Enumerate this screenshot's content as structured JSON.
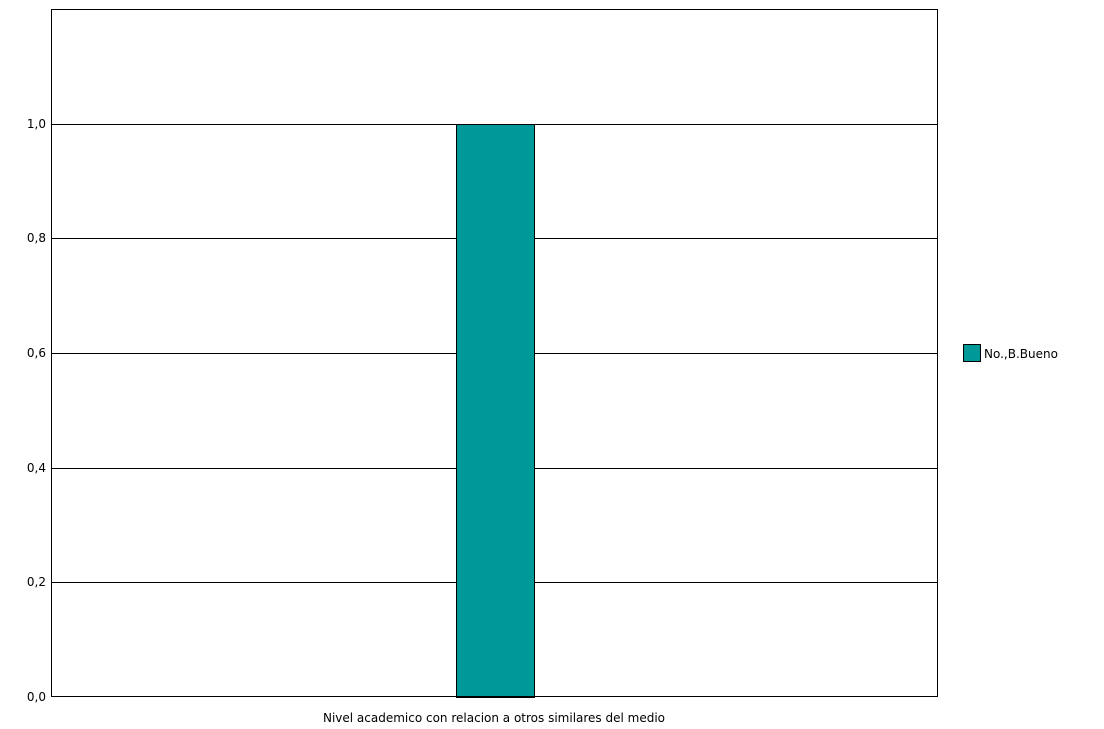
{
  "chart_data": {
    "type": "bar",
    "categories": [
      ""
    ],
    "series": [
      {
        "name": "No.,B.Bueno",
        "values": [
          1.0
        ],
        "color": "#009999"
      }
    ],
    "xlabel": "Nivel academico con relacion a otros similares del medio",
    "ylabel": "",
    "ylim": [
      0,
      1.2
    ],
    "yticks": [
      0.0,
      0.2,
      0.4,
      0.6,
      0.8,
      1.0
    ],
    "ytick_labels": [
      "0,0",
      "0,2",
      "0,4",
      "0,6",
      "0,8",
      "1,0"
    ],
    "grid": true,
    "legend_position": "right"
  }
}
